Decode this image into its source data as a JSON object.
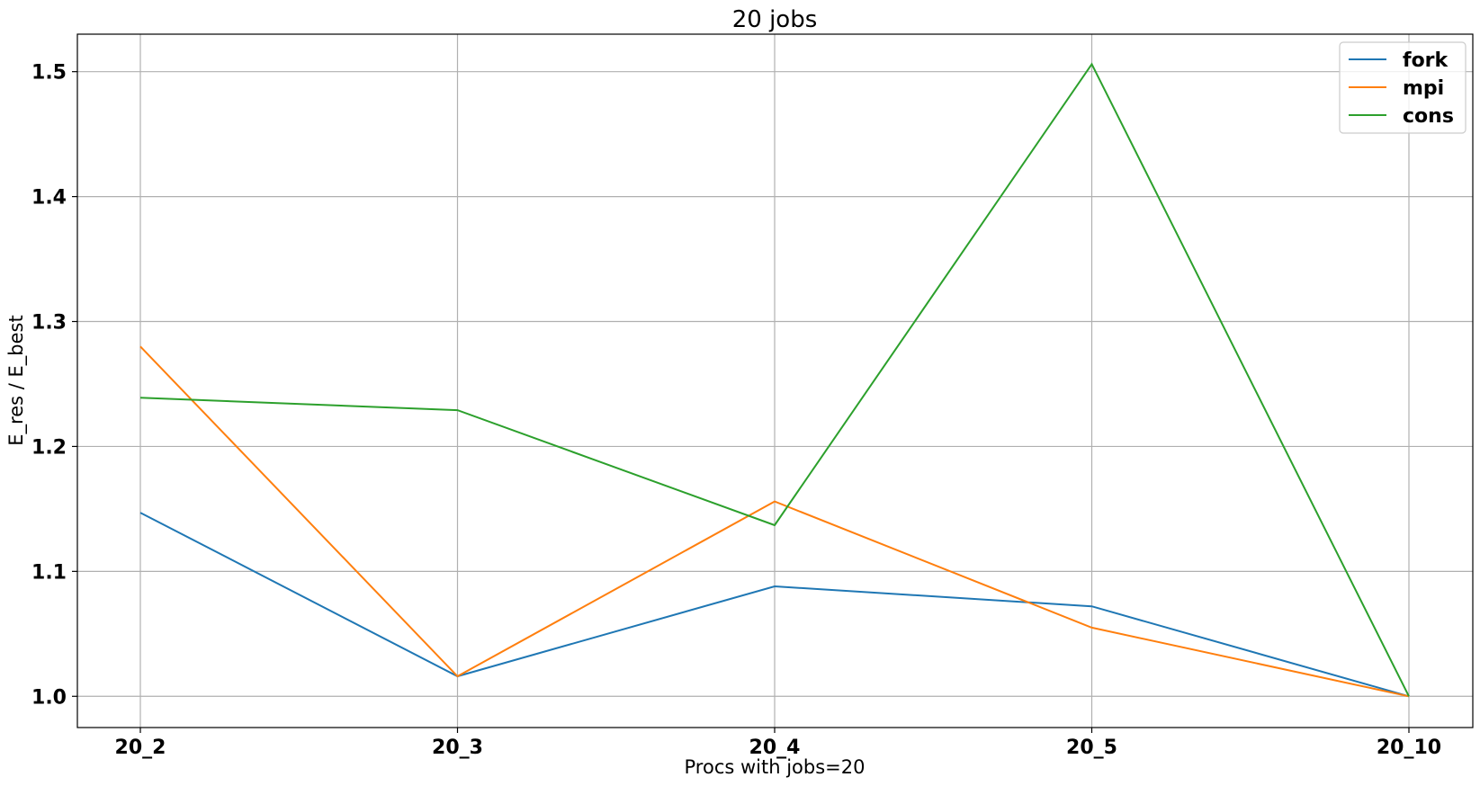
{
  "chart_data": {
    "type": "line",
    "title": "20 jobs",
    "xlabel": "Procs with jobs=20",
    "ylabel": "E_res / E_best",
    "categories": [
      "20_2",
      "20_3",
      "20_4",
      "20_5",
      "20_10"
    ],
    "ylim": [
      0.975,
      1.53
    ],
    "yticks": [
      1.0,
      1.1,
      1.2,
      1.3,
      1.4,
      1.5
    ],
    "grid": true,
    "legend_position": "top-right",
    "series": [
      {
        "name": "fork",
        "color": "#1f77b4",
        "values": [
          1.147,
          1.016,
          1.088,
          1.072,
          1.0
        ]
      },
      {
        "name": "mpi",
        "color": "#ff7f0e",
        "values": [
          1.28,
          1.016,
          1.156,
          1.055,
          1.0
        ]
      },
      {
        "name": "cons",
        "color": "#2ca02c",
        "values": [
          1.239,
          1.229,
          1.137,
          1.506,
          1.0
        ]
      }
    ]
  }
}
